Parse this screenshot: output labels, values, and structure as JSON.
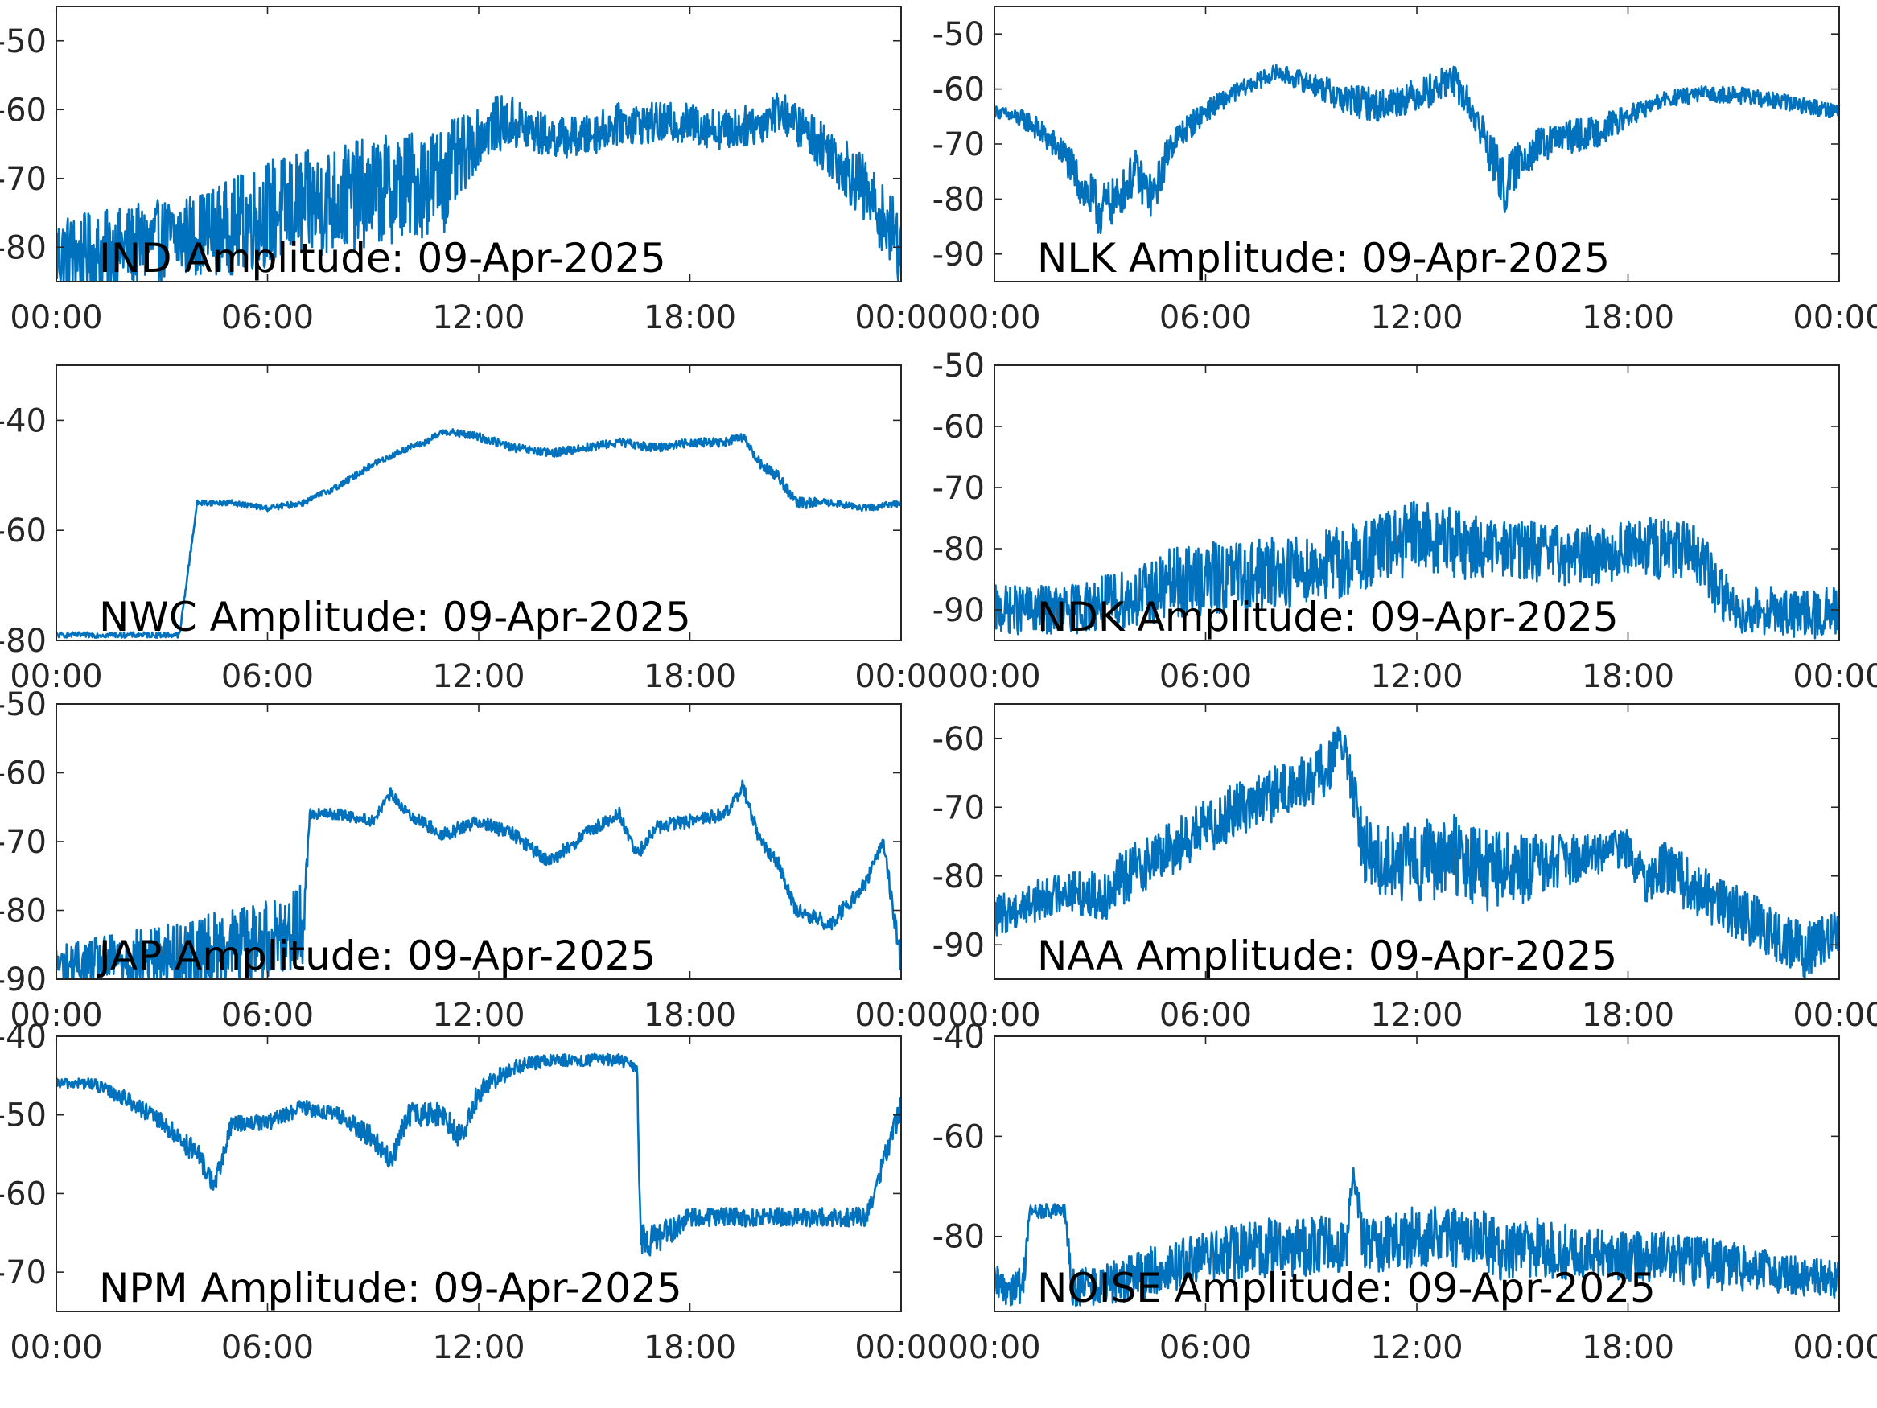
{
  "figure": {
    "line_color": "#0072BD",
    "date": "09-Apr-2025"
  },
  "chart_data": [
    {
      "type": "line",
      "title": "IND Amplitude: 09-Apr-2025",
      "xlabel": "",
      "ylabel": "",
      "x_ticks": [
        "00:00",
        "06:00",
        "12:00",
        "18:00",
        "00:00"
      ],
      "y_ticks": [
        -50,
        -60,
        -70,
        -80
      ],
      "y_tick_labels": [
        "-50",
        "-60",
        "-70",
        "-80"
      ],
      "xlim_hours": [
        0,
        24
      ],
      "ylim": [
        -85,
        -45
      ],
      "grid": false,
      "series": [
        {
          "x_hours": [
            0,
            1,
            2,
            3,
            4,
            5,
            6,
            7,
            8,
            9,
            10,
            11,
            12,
            12.5,
            13,
            14,
            15,
            16,
            17,
            18,
            19,
            20,
            20.5,
            21,
            22,
            23,
            23.5,
            24
          ],
          "y": [
            -81,
            -81,
            -80,
            -79,
            -78,
            -77,
            -75,
            -74,
            -73,
            -72,
            -71,
            -70,
            -64,
            -62,
            -62,
            -64,
            -64,
            -62,
            -62,
            -62,
            -63,
            -62,
            -60,
            -62,
            -66,
            -72,
            -76,
            -80
          ],
          "spread": [
            6,
            6,
            6,
            6,
            6,
            7,
            8,
            8,
            8,
            8,
            8,
            8,
            4,
            4,
            4,
            3,
            3,
            3,
            3,
            3,
            3,
            3,
            3,
            3,
            4,
            5,
            5,
            6
          ]
        }
      ]
    },
    {
      "type": "line",
      "title": "NLK Amplitude: 09-Apr-2025",
      "xlabel": "",
      "ylabel": "",
      "x_ticks": [
        "00:00",
        "06:00",
        "12:00",
        "18:00",
        "00:00"
      ],
      "y_ticks": [
        -50,
        -60,
        -70,
        -80,
        -90
      ],
      "y_tick_labels": [
        "-50",
        "-60",
        "-70",
        "-80",
        "-90"
      ],
      "xlim_hours": [
        0,
        24
      ],
      "ylim": [
        -95,
        -45
      ],
      "grid": false,
      "series": [
        {
          "x_hours": [
            0,
            1,
            2,
            2.5,
            3,
            3.5,
            4,
            4.5,
            5,
            6,
            7,
            8,
            9,
            10,
            11,
            12,
            12.5,
            13,
            13.5,
            14,
            14.5,
            15,
            16,
            17,
            18,
            19,
            20,
            21,
            22,
            23,
            24
          ],
          "y": [
            -64,
            -66,
            -72,
            -78,
            -82,
            -80,
            -75,
            -80,
            -70,
            -64,
            -60,
            -57,
            -59,
            -62,
            -63,
            -61,
            -60,
            -58,
            -63,
            -70,
            -78,
            -72,
            -69,
            -68,
            -65,
            -62,
            -61,
            -61,
            -62,
            -63,
            -64
          ],
          "spread": [
            1,
            2,
            3,
            4,
            5,
            4,
            4,
            4,
            3,
            2,
            1.5,
            1.5,
            2,
            3,
            3,
            3,
            3,
            3,
            3,
            4,
            5,
            4,
            3,
            3,
            2,
            1.5,
            1.5,
            1.5,
            1.5,
            1.5,
            1.5
          ]
        }
      ]
    },
    {
      "type": "line",
      "title": "NWC Amplitude: 09-Apr-2025",
      "xlabel": "",
      "ylabel": "",
      "x_ticks": [
        "00:00",
        "06:00",
        "12:00",
        "18:00",
        "00:00"
      ],
      "y_ticks": [
        -40,
        -60,
        -80
      ],
      "y_tick_labels": [
        "-40",
        "-60",
        "-80"
      ],
      "xlim_hours": [
        0,
        24
      ],
      "ylim": [
        -80,
        -30
      ],
      "grid": false,
      "series": [
        {
          "x_hours": [
            0,
            3.5,
            4,
            5,
            6,
            7,
            8,
            9,
            10,
            10.5,
            11,
            12,
            13,
            14,
            15,
            16,
            17,
            18,
            19,
            19.5,
            20,
            20.5,
            21,
            21.5,
            22,
            23,
            24
          ],
          "y": [
            -79,
            -79,
            -55,
            -55,
            -56,
            -55,
            -52,
            -48,
            -45,
            -44,
            -42,
            -43,
            -45,
            -46,
            -45,
            -44,
            -45,
            -44,
            -44,
            -43,
            -48,
            -50,
            -55,
            -55,
            -55,
            -56,
            -55
          ],
          "spread": [
            0.5,
            0.5,
            0.5,
            0.5,
            0.5,
            0.6,
            0.6,
            0.6,
            0.6,
            0.6,
            0.6,
            0.8,
            0.8,
            0.8,
            0.8,
            0.8,
            0.8,
            0.8,
            0.8,
            0.8,
            1,
            1,
            1,
            1,
            0.6,
            0.6,
            0.6
          ]
        }
      ]
    },
    {
      "type": "line",
      "title": "NDK Amplitude: 09-Apr-2025",
      "xlabel": "",
      "ylabel": "",
      "x_ticks": [
        "00:00",
        "06:00",
        "12:00",
        "18:00",
        "00:00"
      ],
      "y_ticks": [
        -50,
        -60,
        -70,
        -80,
        -90
      ],
      "y_tick_labels": [
        "-50",
        "-60",
        "-70",
        "-80",
        "-90"
      ],
      "xlim_hours": [
        0,
        24
      ],
      "ylim": [
        -95,
        -50
      ],
      "grid": false,
      "series": [
        {
          "x_hours": [
            0,
            2,
            4,
            5,
            6,
            8,
            10,
            11,
            12,
            13,
            14,
            15,
            16,
            17,
            18,
            19,
            20,
            20.5,
            21,
            22,
            23,
            24
          ],
          "y": [
            -90,
            -90,
            -88,
            -86,
            -85,
            -84,
            -82,
            -80,
            -78,
            -79,
            -80,
            -80,
            -81,
            -81,
            -80,
            -80,
            -81,
            -86,
            -90,
            -90,
            -91,
            -90
          ],
          "spread": [
            4,
            4,
            5,
            6,
            6,
            6,
            6,
            6,
            6,
            6,
            5,
            5,
            5,
            5,
            5,
            5,
            5,
            5,
            4,
            4,
            4,
            4
          ]
        }
      ]
    },
    {
      "type": "line",
      "title": "JAP Amplitude: 09-Apr-2025",
      "xlabel": "",
      "ylabel": "",
      "x_ticks": [
        "00:00",
        "06:00",
        "12:00",
        "18:00",
        "00:00"
      ],
      "y_ticks": [
        -50,
        -60,
        -70,
        -80,
        -90
      ],
      "y_tick_labels": [
        "-50",
        "-60",
        "-70",
        "-80",
        "-90"
      ],
      "xlim_hours": [
        0,
        24
      ],
      "ylim": [
        -90,
        -50
      ],
      "grid": false,
      "series": [
        {
          "x_hours": [
            0,
            2,
            4,
            6,
            7,
            7.2,
            8,
            9,
            9.5,
            10,
            11,
            12,
            13,
            14,
            15,
            16,
            16.5,
            17,
            18,
            19,
            19.5,
            20,
            20.5,
            21,
            22,
            23,
            23.5,
            24
          ],
          "y": [
            -88,
            -87,
            -86,
            -84,
            -82,
            -66,
            -66,
            -67,
            -63,
            -66,
            -69,
            -67,
            -69,
            -73,
            -69,
            -66,
            -72,
            -68,
            -67,
            -66,
            -62,
            -70,
            -73,
            -80,
            -82,
            -76,
            -70,
            -88
          ],
          "spread": [
            3,
            4,
            5,
            6,
            6,
            0.8,
            0.8,
            0.8,
            0.8,
            0.8,
            1,
            1,
            1,
            1,
            1,
            1,
            1,
            1,
            1,
            1,
            1,
            1,
            1,
            1,
            1.2,
            1,
            1,
            2
          ]
        }
      ]
    },
    {
      "type": "line",
      "title": "NAA Amplitude: 09-Apr-2025",
      "xlabel": "",
      "ylabel": "",
      "x_ticks": [
        "00:00",
        "06:00",
        "12:00",
        "18:00",
        "00:00"
      ],
      "y_ticks": [
        -60,
        -70,
        -80,
        -90
      ],
      "y_tick_labels": [
        "-60",
        "-70",
        "-80",
        "-90"
      ],
      "xlim_hours": [
        0,
        24
      ],
      "ylim": [
        -95,
        -55
      ],
      "grid": false,
      "series": [
        {
          "x_hours": [
            0,
            1,
            2,
            3,
            4,
            5,
            6,
            7,
            8,
            9,
            9.5,
            9.8,
            10,
            10.5,
            11,
            12,
            13,
            14,
            15,
            16,
            17,
            18,
            18.5,
            19,
            20,
            21,
            22,
            23,
            24
          ],
          "y": [
            -86,
            -84,
            -82,
            -83,
            -79,
            -76,
            -73,
            -70,
            -68,
            -66,
            -64,
            -60,
            -63,
            -76,
            -78,
            -78,
            -77,
            -79,
            -79,
            -78,
            -77,
            -76,
            -81,
            -79,
            -82,
            -85,
            -88,
            -91,
            -88
          ],
          "spread": [
            3,
            3,
            3,
            4,
            4,
            4,
            4,
            4,
            4,
            4,
            4,
            2,
            3,
            5,
            5,
            6,
            6,
            6,
            5,
            4,
            3,
            3,
            3,
            4,
            4,
            4,
            4,
            4,
            3
          ]
        }
      ]
    },
    {
      "type": "line",
      "title": "NPM Amplitude: 09-Apr-2025",
      "xlabel": "",
      "ylabel": "",
      "x_ticks": [
        "00:00",
        "06:00",
        "12:00",
        "18:00",
        "00:00"
      ],
      "y_ticks": [
        -40,
        -50,
        -60,
        -70
      ],
      "y_tick_labels": [
        "-40",
        "-50",
        "-60",
        "-70"
      ],
      "xlim_hours": [
        0,
        24
      ],
      "ylim": [
        -75,
        -40
      ],
      "grid": false,
      "series": [
        {
          "x_hours": [
            0,
            1,
            2,
            3,
            4,
            4.5,
            5,
            6,
            7,
            8,
            9,
            9.5,
            10,
            11,
            11.5,
            12,
            13,
            14,
            15,
            16,
            16.5,
            16.6,
            17,
            18,
            19,
            20,
            21,
            22,
            23,
            23.5,
            24
          ],
          "y": [
            -46,
            -46,
            -48,
            -51,
            -55,
            -59,
            -51,
            -51,
            -49,
            -50,
            -53,
            -56,
            -50,
            -50,
            -53,
            -47,
            -44,
            -43,
            -43,
            -43,
            -44,
            -66,
            -66,
            -63,
            -63,
            -63,
            -63,
            -63,
            -63,
            -56,
            -49
          ],
          "spread": [
            0.6,
            0.8,
            1,
            1.2,
            1.5,
            1.5,
            1.2,
            1,
            1,
            1,
            1.5,
            1.5,
            1.5,
            1.5,
            1.5,
            1.5,
            1,
            0.8,
            0.8,
            0.8,
            0.8,
            2,
            2,
            1.2,
            1.2,
            1.2,
            1.2,
            1.2,
            1.2,
            1.5,
            1.5
          ]
        }
      ]
    },
    {
      "type": "line",
      "title": "NOISE Amplitude: 09-Apr-2025",
      "xlabel": "",
      "ylabel": "",
      "x_ticks": [
        "00:00",
        "06:00",
        "12:00",
        "18:00",
        "00:00"
      ],
      "y_ticks": [
        -40,
        -60,
        -80
      ],
      "y_tick_labels": [
        "-40",
        "-60",
        "-80"
      ],
      "xlim_hours": [
        0,
        24
      ],
      "ylim": [
        -95,
        -40
      ],
      "grid": false,
      "series": [
        {
          "x_hours": [
            0,
            0.8,
            1,
            2,
            2.2,
            3,
            4,
            5,
            6,
            7,
            8,
            9,
            10,
            10.2,
            10.5,
            11,
            12,
            13,
            14,
            14.5,
            15,
            16,
            17,
            18,
            19,
            20,
            21,
            22,
            23,
            24
          ],
          "y": [
            -90,
            -90,
            -75,
            -75,
            -90,
            -90,
            -88,
            -86,
            -84,
            -83,
            -82,
            -82,
            -81,
            -67,
            -82,
            -81,
            -80,
            -80,
            -81,
            -84,
            -82,
            -83,
            -83,
            -84,
            -84,
            -85,
            -86,
            -87,
            -88,
            -89
          ],
          "spread": [
            4,
            4,
            1.5,
            1.5,
            4,
            4,
            5,
            5,
            5,
            6,
            6,
            6,
            6,
            1.5,
            6,
            6,
            6,
            6,
            6,
            6,
            6,
            6,
            5,
            5,
            5,
            5,
            5,
            4,
            4,
            4
          ]
        }
      ]
    }
  ]
}
